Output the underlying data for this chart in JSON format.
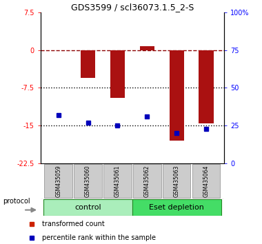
{
  "title": "GDS3599 / scl36073.1.5_2-S",
  "samples": [
    "GSM435059",
    "GSM435060",
    "GSM435061",
    "GSM435062",
    "GSM435063",
    "GSM435064"
  ],
  "red_values": [
    0.0,
    -5.5,
    -9.5,
    0.8,
    -18.0,
    -14.5
  ],
  "blue_pct": [
    32,
    27,
    25,
    31,
    20,
    23
  ],
  "ylim_left": [
    -22.5,
    7.5
  ],
  "ylim_right": [
    0,
    100
  ],
  "yticks_left": [
    7.5,
    0,
    -7.5,
    -15,
    -22.5
  ],
  "yticks_right": [
    100,
    75,
    50,
    25,
    0
  ],
  "ytick_labels_left": [
    "7.5",
    "0",
    "-7.5",
    "-15",
    "-22.5"
  ],
  "ytick_labels_right": [
    "100%",
    "75",
    "50",
    "25",
    "0"
  ],
  "hlines": [
    {
      "y": 0,
      "color": "darkred",
      "linestyle": "--",
      "lw": 1.0
    },
    {
      "y": -7.5,
      "color": "black",
      "linestyle": ":",
      "lw": 1.0
    },
    {
      "y": -15,
      "color": "black",
      "linestyle": ":",
      "lw": 1.0
    }
  ],
  "bar_color": "#AA1111",
  "dot_color": "#0000BB",
  "bg_color": "#ffffff",
  "label_color_left": "red",
  "label_color_right": "blue",
  "control_color": "#AAEEBB",
  "eset_color": "#44DD66",
  "sample_box_color": "#CCCCCC",
  "legend_items": [
    {
      "color": "#CC2200",
      "label": "transformed count"
    },
    {
      "color": "#0000BB",
      "label": "percentile rank within the sample"
    }
  ]
}
